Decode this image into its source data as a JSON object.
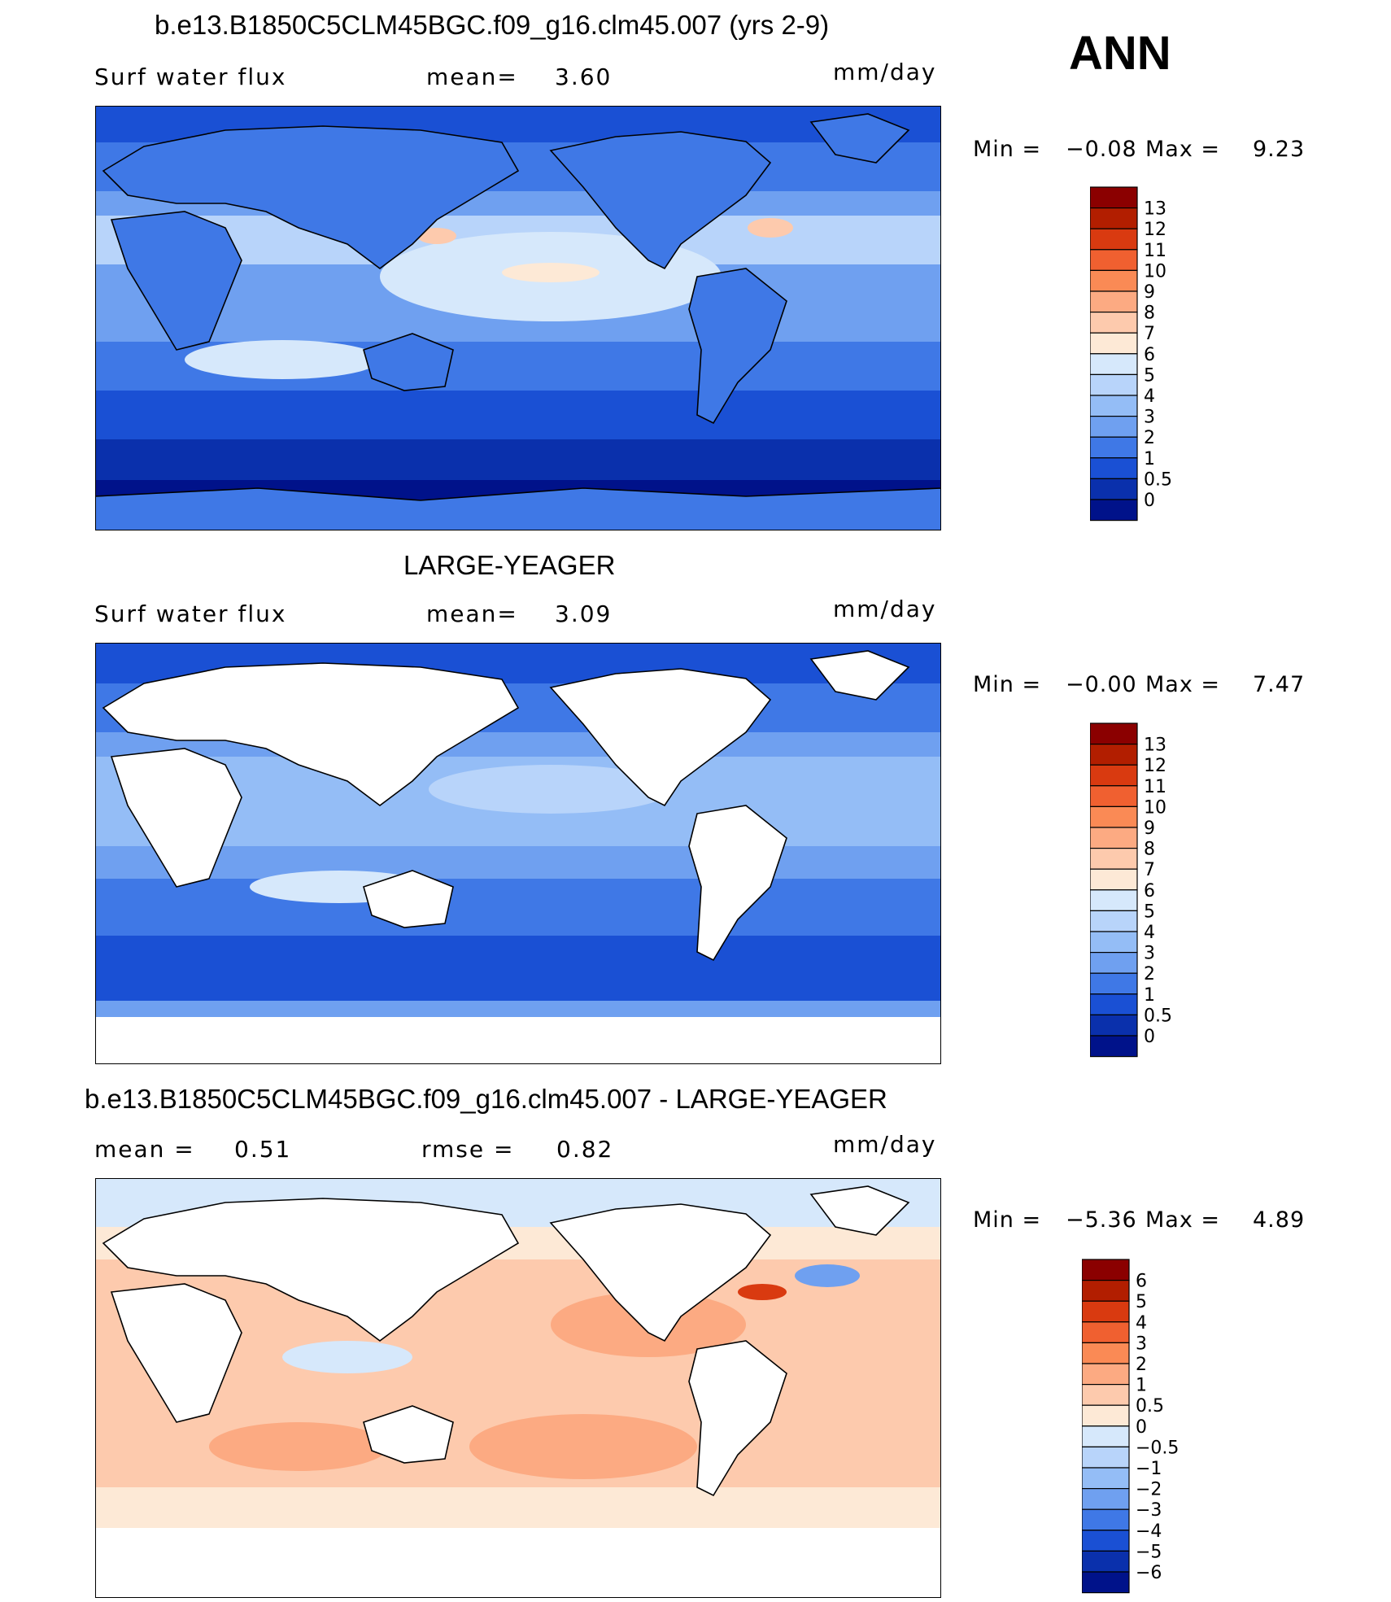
{
  "header": {
    "season": "ANN",
    "units": "mm/day"
  },
  "panels": [
    {
      "title": "b.e13.B1850C5CLM45BGC.f09_g16.clm45.007 (yrs 2-9)",
      "left_label": "Surf  water  flux",
      "stat_label": "mean=",
      "stat_value": "3.60",
      "units": "mm/day",
      "min_label": "Min  =",
      "min_value": "−0.08",
      "max_label": "Max  =",
      "max_value": "9.23",
      "land_filled": true
    },
    {
      "title": "LARGE-YEAGER",
      "left_label": "Surf  water  flux",
      "stat_label": "mean=",
      "stat_value": "3.09",
      "units": "mm/day",
      "min_label": "Min  =",
      "min_value": "−0.00",
      "max_label": "Max  =",
      "max_value": "7.47",
      "land_filled": false
    },
    {
      "title": "b.e13.B1850C5CLM45BGC.f09_g16.clm45.007 - LARGE-YEAGER",
      "left_label": "mean  =",
      "left_value": "0.51",
      "stat_label": "rmse  =",
      "stat_value": "0.82",
      "units": "mm/day",
      "min_label": "Min  =",
      "min_value": "−5.36",
      "max_label": "Max  =",
      "max_value": "4.89",
      "land_filled": false
    }
  ],
  "chart_data": [
    {
      "type": "heatmap",
      "title": "b.e13.B1850C5CLM45BGC.f09_g16.clm45.007 (yrs 2-9)",
      "variable": "Surf water flux",
      "units": "mm/day",
      "mean": 3.6,
      "min": -0.08,
      "max": 9.23,
      "colorbar_levels": [
        "13",
        "12",
        "11",
        "10",
        "9",
        "8",
        "7",
        "6",
        "5",
        "4",
        "3",
        "2",
        "1",
        "0.5",
        "0"
      ],
      "colorbar_colors": [
        "#8b0000",
        "#b21e00",
        "#d93a10",
        "#f06030",
        "#fa8a55",
        "#fcaa82",
        "#fdcaad",
        "#fde9d6",
        "#d6e8fb",
        "#b8d4fa",
        "#94bdf6",
        "#6fa0f0",
        "#3f78e6",
        "#1a50d4",
        "#0a30ac",
        "#00128a"
      ]
    },
    {
      "type": "heatmap",
      "title": "LARGE-YEAGER",
      "variable": "Surf water flux",
      "units": "mm/day",
      "mean": 3.09,
      "min": -0.0,
      "max": 7.47,
      "colorbar_levels": [
        "13",
        "12",
        "11",
        "10",
        "9",
        "8",
        "7",
        "6",
        "5",
        "4",
        "3",
        "2",
        "1",
        "0.5",
        "0"
      ],
      "colorbar_colors": [
        "#8b0000",
        "#b21e00",
        "#d93a10",
        "#f06030",
        "#fa8a55",
        "#fcaa82",
        "#fdcaad",
        "#fde9d6",
        "#d6e8fb",
        "#b8d4fa",
        "#94bdf6",
        "#6fa0f0",
        "#3f78e6",
        "#1a50d4",
        "#0a30ac",
        "#00128a"
      ]
    },
    {
      "type": "heatmap",
      "title": "b.e13.B1850C5CLM45BGC.f09_g16.clm45.007 - LARGE-YEAGER",
      "units": "mm/day",
      "mean": 0.51,
      "rmse": 0.82,
      "min": -5.36,
      "max": 4.89,
      "colorbar_levels": [
        "6",
        "5",
        "4",
        "3",
        "2",
        "1",
        "0.5",
        "0",
        "−0.5",
        "−1",
        "−2",
        "−3",
        "−4",
        "−5",
        "−6"
      ],
      "colorbar_colors": [
        "#8b0000",
        "#b21e00",
        "#d93a10",
        "#f06030",
        "#fa8a55",
        "#fcaa82",
        "#fdcaad",
        "#fde9d6",
        "#d6e8fb",
        "#b8d4fa",
        "#94bdf6",
        "#6fa0f0",
        "#3f78e6",
        "#1a50d4",
        "#0a30ac",
        "#00128a"
      ]
    }
  ]
}
